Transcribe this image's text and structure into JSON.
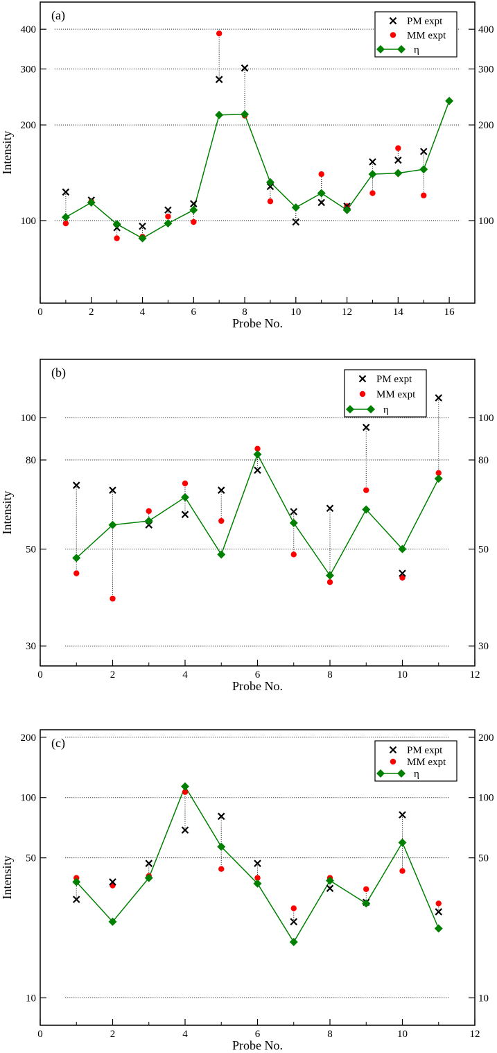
{
  "chart_data": [
    {
      "type": "scatter",
      "panel_label": "(a)",
      "xlabel": "Probe No.",
      "ylabel": "Intensity",
      "xlim": [
        0,
        17
      ],
      "ylim": [
        55,
        487
      ],
      "y_scale": "log",
      "xticks": [
        0,
        2,
        4,
        6,
        8,
        10,
        12,
        14,
        16
      ],
      "yticks": [
        100,
        200,
        300,
        400
      ],
      "grid": "dotted horizontal at y ticks",
      "legend": "top-right",
      "series": [
        {
          "name": "PM expt",
          "marker": "x",
          "color": "#000000",
          "x": [
            1,
            2,
            3,
            4,
            5,
            6,
            7,
            8,
            9,
            10,
            11,
            12,
            13,
            14,
            15
          ],
          "y": [
            123,
            116,
            95,
            96,
            108,
            113,
            278,
            302,
            128,
            99,
            114,
            111,
            153,
            155,
            165
          ]
        },
        {
          "name": "MM expt",
          "marker": "circle",
          "color": "#ff0000",
          "x": [
            1,
            2,
            3,
            4,
            5,
            6,
            7,
            8,
            9,
            10,
            11,
            12,
            13,
            14,
            15
          ],
          "y": [
            98,
            115,
            88,
            89,
            103,
            99,
            388,
            214,
            115,
            110,
            140,
            111,
            122,
            169,
            120
          ]
        },
        {
          "name": "η",
          "marker": "diamond-line",
          "color": "#008000",
          "x": [
            1,
            2,
            3,
            4,
            5,
            6,
            7,
            8,
            9,
            10,
            11,
            12,
            13,
            14,
            15,
            16
          ],
          "y": [
            102.5,
            114,
            97.5,
            88,
            98,
            108,
            215,
            216,
            132,
            110,
            122,
            108,
            140,
            141,
            145,
            238
          ]
        }
      ]
    },
    {
      "type": "scatter",
      "panel_label": "(b)",
      "xlabel": "Probe No.",
      "ylabel": "Intensity",
      "xlim": [
        0,
        12
      ],
      "ylim": [
        27,
        136
      ],
      "y_scale": "log",
      "xticks": [
        0,
        2,
        4,
        6,
        8,
        10,
        12
      ],
      "yticks": [
        30,
        50,
        80,
        100
      ],
      "grid": "dotted horizontal at y ticks",
      "legend": "top-right",
      "series": [
        {
          "name": "PM expt",
          "marker": "x",
          "color": "#000000",
          "x": [
            1,
            2,
            3,
            4,
            5,
            6,
            7,
            8,
            9,
            10,
            11
          ],
          "y": [
            70,
            68.2,
            56.8,
            60,
            68.2,
            75.8,
            60.9,
            62,
            95,
            44,
            111
          ]
        },
        {
          "name": "MM expt",
          "marker": "circle",
          "color": "#ff0000",
          "x": [
            1,
            2,
            3,
            4,
            5,
            6,
            7,
            8,
            9,
            10,
            11
          ],
          "y": [
            44,
            38.5,
            61.1,
            70.7,
            58,
            84.9,
            48.6,
            42,
            68.2,
            43,
            74.7
          ]
        },
        {
          "name": "η",
          "marker": "diamond-line",
          "color": "#008000",
          "x": [
            1,
            2,
            3,
            4,
            5,
            6,
            7,
            8,
            9,
            10,
            11
          ],
          "y": [
            47.7,
            56.8,
            58,
            65.7,
            48.6,
            82.4,
            57.4,
            43.5,
            61.6,
            50,
            72.5
          ]
        }
      ]
    },
    {
      "type": "scatter",
      "panel_label": "(c)",
      "xlabel": "Probe No.",
      "ylabel": "Intensity",
      "xlim": [
        0,
        12
      ],
      "ylim": [
        7.3,
        218
      ],
      "y_scale": "log",
      "xticks": [
        0,
        2,
        4,
        6,
        8,
        10,
        12
      ],
      "yticks": [
        10,
        50,
        100,
        200
      ],
      "grid": "dotted horizontal at y ticks",
      "legend": "top-right",
      "series": [
        {
          "name": "PM expt",
          "marker": "x",
          "color": "#000000",
          "x": [
            1,
            2,
            3,
            4,
            5,
            6,
            7,
            8,
            9,
            10,
            11
          ],
          "y": [
            31,
            37.9,
            46.9,
            68.8,
            80.6,
            46.9,
            24,
            35.2,
            30,
            82,
            26.9
          ]
        },
        {
          "name": "MM expt",
          "marker": "circle",
          "color": "#ff0000",
          "x": [
            1,
            2,
            3,
            4,
            5,
            6,
            7,
            8,
            9,
            10,
            11
          ],
          "y": [
            39.7,
            36.4,
            40.6,
            106.6,
            44,
            39.7,
            28,
            39.7,
            34.9,
            43,
            29.6
          ]
        },
        {
          "name": "η",
          "marker": "diamond-line",
          "color": "#008000",
          "x": [
            1,
            2,
            3,
            4,
            5,
            6,
            7,
            8,
            9,
            10,
            11
          ],
          "y": [
            37.9,
            24,
            39.7,
            113.6,
            56.8,
            37.2,
            19,
            38.5,
            29.6,
            59.6,
            22.2
          ]
        }
      ]
    }
  ]
}
